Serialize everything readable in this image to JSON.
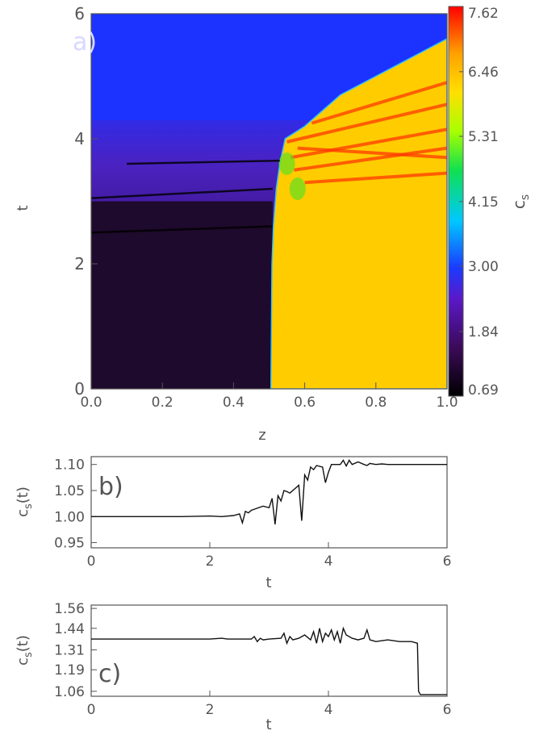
{
  "chart_data": [
    {
      "type": "heatmap",
      "panel_label": "a)",
      "xlabel": "z",
      "ylabel": "t",
      "xlim": [
        0.0,
        1.0
      ],
      "ylim": [
        0,
        6
      ],
      "xticks": [
        "0.0",
        "0.2",
        "0.4",
        "0.6",
        "0.8",
        "1.0"
      ],
      "yticks": [
        "0",
        "2",
        "4",
        "6"
      ],
      "colorbar_label": "c",
      "colorbar_label_sub": "s",
      "colorbar_ticks": [
        "0.69",
        "1.84",
        "3.00",
        "4.15",
        "5.31",
        "6.46",
        "7.62"
      ],
      "colorbar_range": [
        0.69,
        7.62
      ],
      "front_z_by_t": [
        {
          "t": 0.0,
          "z": 0.505
        },
        {
          "t": 2.0,
          "z": 0.508
        },
        {
          "t": 2.6,
          "z": 0.512
        },
        {
          "t": 3.2,
          "z": 0.52
        },
        {
          "t": 3.6,
          "z": 0.53
        },
        {
          "t": 4.0,
          "z": 0.545
        },
        {
          "t": 4.2,
          "z": 0.6
        },
        {
          "t": 4.4,
          "z": 0.64
        },
        {
          "t": 4.7,
          "z": 0.7
        },
        {
          "t": 5.0,
          "z": 0.8
        },
        {
          "t": 5.3,
          "z": 0.9
        },
        {
          "t": 5.6,
          "z": 1.0
        }
      ]
    },
    {
      "type": "line",
      "panel_label": "b)",
      "xlabel": "t",
      "ylabel": "c",
      "ylabel_sub": "s",
      "ylabel_suffix": "(t)",
      "xlim": [
        0,
        6
      ],
      "ylim": [
        0.94,
        1.115
      ],
      "xticks": [
        "0",
        "2",
        "4",
        "6"
      ],
      "yticks": [
        "0.95",
        "1.00",
        "1.05",
        "1.10"
      ],
      "series": [
        {
          "x": [
            0,
            0.5,
            1.0,
            1.5,
            2.0,
            2.2,
            2.4,
            2.5,
            2.55,
            2.6,
            2.65,
            2.7,
            2.8,
            2.9,
            3.0,
            3.05,
            3.1,
            3.15,
            3.2,
            3.25,
            3.3,
            3.35,
            3.5,
            3.55,
            3.6,
            3.65,
            3.7,
            3.75,
            3.8,
            3.9,
            3.95,
            4.0,
            4.05,
            4.1,
            4.2,
            4.25,
            4.3,
            4.35,
            4.4,
            4.5,
            4.6,
            4.65,
            4.7,
            4.8,
            4.9,
            5.0,
            5.5,
            6.0
          ],
          "y": [
            1.0,
            1.0,
            1.0,
            1.0,
            1.001,
            1.0,
            1.002,
            1.005,
            0.988,
            1.01,
            1.007,
            1.012,
            1.016,
            1.02,
            1.017,
            1.035,
            0.985,
            1.04,
            1.03,
            1.05,
            1.048,
            1.045,
            1.06,
            0.992,
            1.08,
            1.07,
            1.095,
            1.09,
            1.098,
            1.095,
            1.065,
            1.085,
            1.1,
            1.1,
            1.1,
            1.108,
            1.097,
            1.108,
            1.1,
            1.105,
            1.1,
            1.098,
            1.102,
            1.1,
            1.101,
            1.1,
            1.1,
            1.1
          ]
        }
      ]
    },
    {
      "type": "line",
      "panel_label": "c)",
      "xlabel": "t",
      "ylabel": "c",
      "ylabel_sub": "s",
      "ylabel_suffix": "(t)",
      "xlim": [
        0,
        6
      ],
      "ylim": [
        1.03,
        1.58
      ],
      "xticks": [
        "0",
        "2",
        "4",
        "6"
      ],
      "yticks": [
        "1.06",
        "1.19",
        "1.31",
        "1.44",
        "1.56"
      ],
      "series": [
        {
          "x": [
            0,
            1.0,
            2.0,
            2.2,
            2.3,
            2.7,
            2.75,
            2.8,
            2.85,
            2.9,
            3.0,
            3.2,
            3.25,
            3.3,
            3.35,
            3.4,
            3.5,
            3.6,
            3.7,
            3.75,
            3.8,
            3.85,
            3.9,
            3.95,
            4.0,
            4.05,
            4.1,
            4.15,
            4.2,
            4.25,
            4.3,
            4.4,
            4.5,
            4.6,
            4.65,
            4.7,
            4.8,
            5.0,
            5.2,
            5.4,
            5.5,
            5.52,
            5.55,
            6.0
          ],
          "y": [
            1.375,
            1.375,
            1.375,
            1.38,
            1.375,
            1.375,
            1.39,
            1.36,
            1.38,
            1.37,
            1.375,
            1.38,
            1.41,
            1.35,
            1.39,
            1.37,
            1.38,
            1.4,
            1.37,
            1.42,
            1.35,
            1.44,
            1.36,
            1.41,
            1.39,
            1.43,
            1.37,
            1.42,
            1.35,
            1.44,
            1.4,
            1.38,
            1.37,
            1.38,
            1.43,
            1.37,
            1.36,
            1.37,
            1.36,
            1.36,
            1.35,
            1.06,
            1.04,
            1.04
          ]
        }
      ]
    }
  ]
}
